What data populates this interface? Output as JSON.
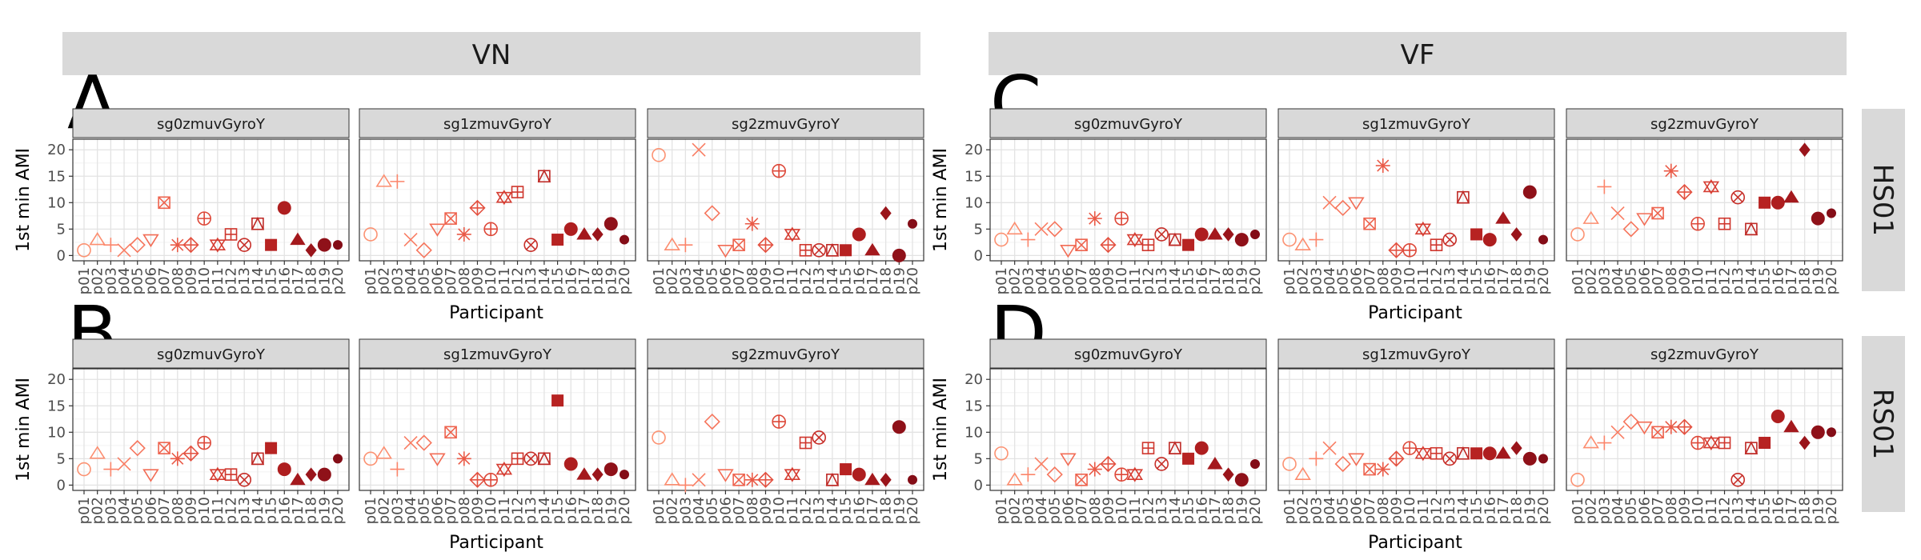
{
  "chart_data": {
    "type": "scatter",
    "column_groups": [
      "VN",
      "VF"
    ],
    "row_groups": [
      "HS01",
      "RS01"
    ],
    "panel_letters": [
      "A",
      "C",
      "B",
      "D"
    ],
    "subpanels": [
      "sg0zmuvGyroY",
      "sg1zmuvGyroY",
      "sg2zmuvGyroY"
    ],
    "xlabel": "Participant",
    "ylabel": "1st min AMI",
    "ylim": [
      -1,
      22
    ],
    "y_ticks": [
      0,
      5,
      10,
      15,
      20
    ],
    "grid": true,
    "categories": [
      "p01",
      "p02",
      "p03",
      "p04",
      "p05",
      "p06",
      "p07",
      "p08",
      "p09",
      "p10",
      "p11",
      "p12",
      "p13",
      "p14",
      "p15",
      "p16",
      "p17",
      "p18",
      "p19",
      "p20"
    ],
    "shapes": [
      "circle-open",
      "triangle-open",
      "plus",
      "cross",
      "diamond-open",
      "triangle-down-open",
      "square-cross",
      "star",
      "diamond-plus",
      "circle-plus",
      "triangle-star",
      "square-plus",
      "circle-cross",
      "square-triangle",
      "square",
      "circle",
      "triangle",
      "diamond",
      "circle",
      "circle-small"
    ],
    "colors": [
      "#fc9272",
      "#fc8d6f",
      "#fb856a",
      "#f97d63",
      "#f6755c",
      "#f26c55",
      "#ee634e",
      "#e95a47",
      "#e35140",
      "#dd4839",
      "#d63e33",
      "#cf362d",
      "#c72f29",
      "#bf2925",
      "#b72322",
      "#ae1e1f",
      "#a4191d",
      "#9a151b",
      "#8f1119",
      "#840d17"
    ],
    "facets": [
      {
        "row": "HS01",
        "col": "VN",
        "sub": "sg0zmuvGyroY",
        "values": [
          1,
          3,
          2,
          1,
          2,
          3,
          10,
          2,
          2,
          7,
          2,
          4,
          2,
          6,
          2,
          9,
          3,
          1,
          2,
          2
        ]
      },
      {
        "row": "HS01",
        "col": "VN",
        "sub": "sg1zmuvGyroY",
        "values": [
          4,
          14,
          14,
          3,
          1,
          5,
          7,
          4,
          9,
          5,
          11,
          12,
          2,
          15,
          3,
          5,
          4,
          4,
          6,
          3
        ]
      },
      {
        "row": "HS01",
        "col": "VN",
        "sub": "sg2zmuvGyroY",
        "values": [
          19,
          2,
          2,
          20,
          8,
          1,
          2,
          6,
          2,
          16,
          4,
          1,
          1,
          1,
          1,
          4,
          1,
          8,
          0,
          6
        ]
      },
      {
        "row": "HS01",
        "col": "VF",
        "sub": "sg0zmuvGyroY",
        "values": [
          3,
          5,
          3,
          5,
          5,
          1,
          2,
          7,
          2,
          7,
          3,
          2,
          4,
          3,
          2,
          4,
          4,
          4,
          3,
          4
        ]
      },
      {
        "row": "HS01",
        "col": "VF",
        "sub": "sg1zmuvGyroY",
        "values": [
          3,
          2,
          3,
          10,
          9,
          10,
          6,
          17,
          1,
          1,
          5,
          2,
          3,
          11,
          4,
          3,
          7,
          4,
          12,
          3
        ]
      },
      {
        "row": "HS01",
        "col": "VF",
        "sub": "sg2zmuvGyroY",
        "values": [
          4,
          7,
          13,
          8,
          5,
          7,
          8,
          16,
          12,
          6,
          13,
          6,
          11,
          5,
          10,
          10,
          11,
          20,
          7,
          8
        ]
      },
      {
        "row": "RS01",
        "col": "VN",
        "sub": "sg0zmuvGyroY",
        "values": [
          3,
          6,
          3,
          4,
          7,
          2,
          7,
          5,
          6,
          8,
          2,
          2,
          1,
          5,
          7,
          3,
          1,
          2,
          2,
          5
        ]
      },
      {
        "row": "RS01",
        "col": "VN",
        "sub": "sg1zmuvGyroY",
        "values": [
          5,
          6,
          3,
          8,
          8,
          5,
          10,
          5,
          1,
          1,
          3,
          5,
          5,
          5,
          16,
          4,
          2,
          2,
          3,
          2
        ]
      },
      {
        "row": "RS01",
        "col": "VN",
        "sub": "sg2zmuvGyroY",
        "values": [
          9,
          1,
          0,
          1,
          12,
          2,
          1,
          1,
          1,
          12,
          2,
          8,
          9,
          1,
          3,
          2,
          1,
          1,
          11,
          1
        ]
      },
      {
        "row": "RS01",
        "col": "VF",
        "sub": "sg0zmuvGyroY",
        "values": [
          6,
          1,
          2,
          4,
          2,
          5,
          1,
          3,
          4,
          2,
          2,
          7,
          4,
          7,
          5,
          7,
          4,
          2,
          1,
          4
        ]
      },
      {
        "row": "RS01",
        "col": "VF",
        "sub": "sg1zmuvGyroY",
        "values": [
          4,
          2,
          5,
          7,
          4,
          5,
          3,
          3,
          5,
          7,
          6,
          6,
          5,
          6,
          6,
          6,
          6,
          7,
          5,
          5
        ]
      },
      {
        "row": "RS01",
        "col": "VF",
        "sub": "sg2zmuvGyroY",
        "values": [
          1,
          8,
          8,
          10,
          12,
          11,
          10,
          11,
          11,
          8,
          8,
          8,
          1,
          7,
          8,
          13,
          11,
          8,
          10,
          10
        ]
      }
    ]
  }
}
